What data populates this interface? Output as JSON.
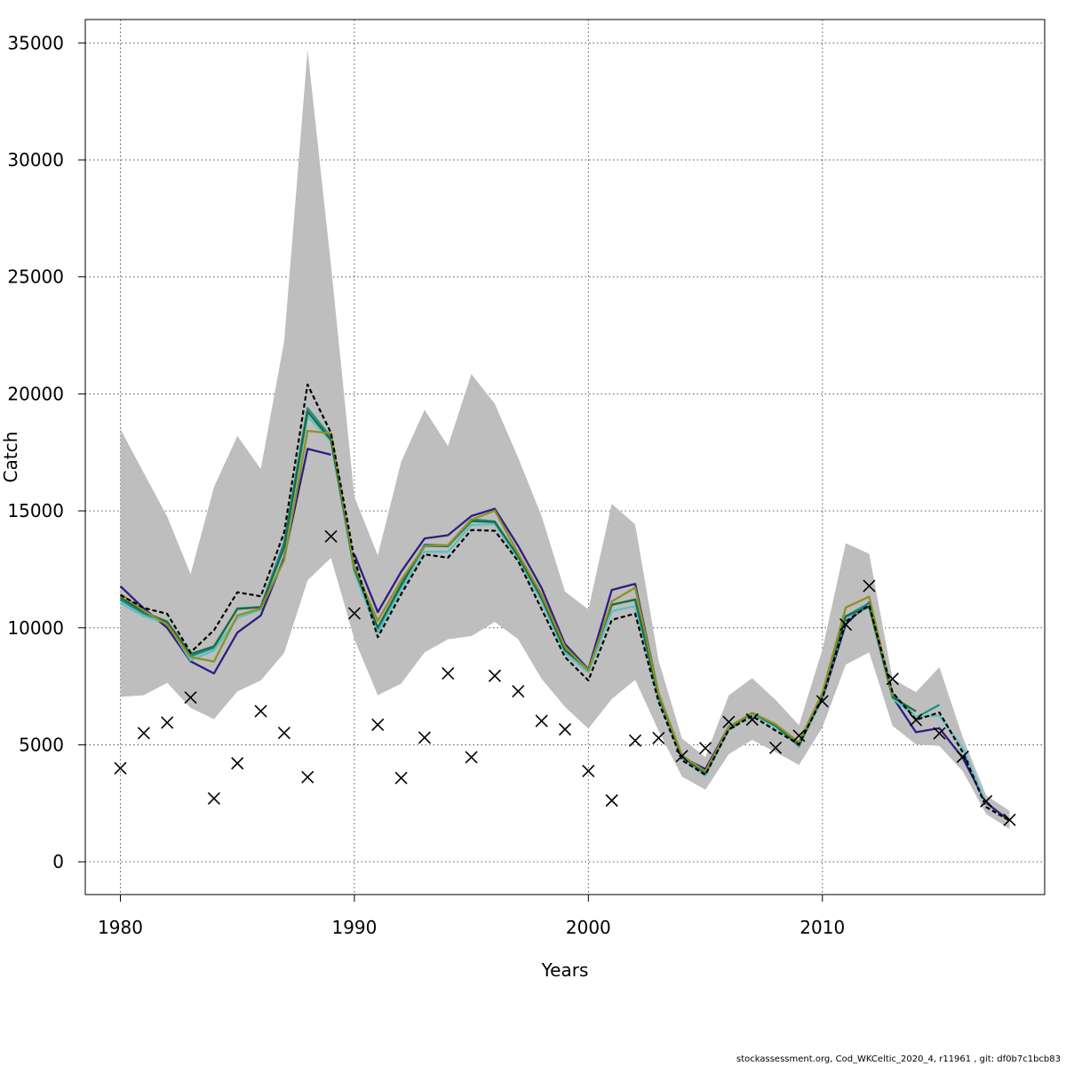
{
  "chart_data": {
    "type": "line",
    "title": "",
    "xlabel": "Years",
    "ylabel": "Catch",
    "xlim": [
      1978.5,
      2019.5
    ],
    "ylim": [
      -1400,
      36000
    ],
    "xticks": [
      1980,
      1990,
      2000,
      2010
    ],
    "yticks": [
      0,
      5000,
      10000,
      15000,
      20000,
      25000,
      30000,
      35000
    ],
    "grid": true,
    "band": {
      "x": [
        1980,
        1981,
        1982,
        1983,
        1984,
        1985,
        1986,
        1987,
        1988,
        1989,
        1990,
        1991,
        1992,
        1993,
        1994,
        1995,
        1996,
        1997,
        1998,
        1999,
        2000,
        2001,
        2002,
        2003,
        2004,
        2005,
        2006,
        2007,
        2008,
        2009,
        2010,
        2011,
        2012,
        2013,
        2014,
        2015,
        2016,
        2017,
        2018
      ],
      "lower": [
        7050,
        7120,
        7650,
        6580,
        6100,
        7280,
        7750,
        8930,
        12030,
        12990,
        9510,
        7120,
        7620,
        8950,
        9510,
        9650,
        10250,
        9510,
        7820,
        6620,
        5690,
        6960,
        7780,
        5600,
        3640,
        3080,
        4600,
        5210,
        4690,
        4140,
        5750,
        8430,
        8950,
        5810,
        5020,
        4950,
        3870,
        2040,
        1400
      ],
      "upper": [
        18500,
        16620,
        14760,
        12300,
        16020,
        18200,
        16790,
        22250,
        34700,
        25500,
        15600,
        13100,
        17100,
        19320,
        17770,
        20850,
        19580,
        17270,
        14780,
        11550,
        10790,
        15300,
        14420,
        8600,
        5270,
        4470,
        7120,
        7850,
        6920,
        5840,
        9070,
        13620,
        13160,
        7820,
        7250,
        8320,
        5320,
        2840,
        2180
      ]
    },
    "series": [
      {
        "name": "",
        "color": "#000000",
        "dashed": true,
        "x": [
          1980,
          1981,
          1982,
          1983,
          1984,
          1985,
          1986,
          1987,
          1988,
          1989,
          1990,
          1991,
          1992,
          1993,
          1994,
          1995,
          1996,
          1997,
          1998,
          1999,
          2000,
          2001,
          2002,
          2003,
          2004,
          2005,
          2006,
          2007,
          2008,
          2009,
          2010,
          2011,
          2012,
          2013,
          2014,
          2015,
          2016,
          2017,
          2018
        ],
        "values": [
          11400,
          10850,
          10600,
          8950,
          9900,
          11520,
          11350,
          14080,
          20400,
          18330,
          12950,
          9600,
          11440,
          13140,
          13000,
          14180,
          14150,
          12850,
          10800,
          8750,
          7750,
          10340,
          10610,
          6840,
          4340,
          3720,
          5650,
          6230,
          5610,
          5020,
          7000,
          10270,
          10970,
          7240,
          6070,
          6380,
          4680,
          2340,
          1760
        ]
      },
      {
        "name": "",
        "color": "#2e1e80",
        "dashed": false,
        "x": [
          1980,
          1981,
          1982,
          1983,
          1984,
          1985,
          1986,
          1987,
          1988,
          1989
        ],
        "values": [
          11780,
          10830,
          10000,
          8570,
          8050,
          9800,
          10530,
          13000,
          17650,
          17400
        ]
      },
      {
        "name": "",
        "color": "#2e1e80",
        "dashed": false,
        "x": [
          1990,
          1991,
          1992,
          1993,
          1994,
          1995,
          1996,
          1997,
          1998,
          1999,
          2000,
          2001,
          2002,
          2003,
          2004,
          2005,
          2006,
          2007,
          2008,
          2009,
          2010,
          2011,
          2012,
          2013,
          2014,
          2015,
          2016,
          2017,
          2018
        ],
        "values": [
          13150,
          10670,
          12400,
          13820,
          13960,
          14780,
          15090,
          13500,
          11700,
          9310,
          8230,
          11620,
          11880,
          7190,
          4470,
          3960,
          5770,
          6330,
          5770,
          5040,
          6960,
          10160,
          11090,
          7050,
          5540,
          5710,
          4440,
          2520,
          1760
        ]
      },
      {
        "name": "",
        "color": "#1f8f8a",
        "dashed": false,
        "x": [
          1980,
          1981,
          1982,
          1983,
          1984,
          1985,
          1986,
          1987,
          1988,
          1989,
          1990,
          1991,
          1992,
          1993,
          1994,
          1995,
          1996,
          1997,
          1998,
          1999,
          2000,
          2001,
          2002,
          2003,
          2004,
          2005,
          2006,
          2007,
          2008,
          2009,
          2010,
          2011,
          2012,
          2013,
          2014,
          2015
        ],
        "values": [
          11190,
          10610,
          10180,
          8780,
          9150,
          10830,
          10890,
          13650,
          19390,
          18150,
          12500,
          9960,
          11790,
          13560,
          13520,
          14640,
          14550,
          13050,
          11280,
          9050,
          8200,
          10980,
          11220,
          7080,
          4470,
          3740,
          5680,
          6350,
          5810,
          4930,
          7060,
          10490,
          11060,
          7190,
          6160,
          6710
        ]
      },
      {
        "name": "",
        "color": "#5bc0c7",
        "dashed": false,
        "x": [
          1980,
          1981,
          1982,
          1983,
          1984,
          1985,
          1986,
          1987,
          1988,
          1989,
          1990,
          1991,
          1992,
          1993,
          1994,
          1995,
          1996,
          1997,
          1998,
          1999,
          2000,
          2001,
          2002,
          2003,
          2004,
          2005,
          2006,
          2007,
          2008,
          2009,
          2010,
          2011,
          2012,
          2013,
          2014,
          2015,
          2016,
          2017
        ],
        "values": [
          11060,
          10500,
          10200,
          8610,
          9040,
          10420,
          10780,
          13370,
          19050,
          17980,
          12370,
          9790,
          11630,
          13250,
          13250,
          14400,
          14430,
          12930,
          11130,
          8910,
          8100,
          10710,
          10930,
          6920,
          4410,
          3680,
          5640,
          6310,
          5740,
          4960,
          6980,
          10400,
          10900,
          6980,
          6180,
          6250,
          4870,
          2490
        ]
      },
      {
        "name": "",
        "color": "#1c6e3e",
        "dashed": false,
        "x": [
          1980,
          1981,
          1982,
          1983,
          1984,
          1985,
          1986,
          1987,
          1988,
          1989,
          1990,
          1991,
          1992,
          1993,
          1994,
          1995,
          1996,
          1997,
          1998,
          1999,
          2000,
          2001,
          2002,
          2003,
          2004,
          2005,
          2006,
          2007,
          2008,
          2009,
          2010,
          2011,
          2012,
          2013,
          2014
        ],
        "values": [
          11290,
          10680,
          10260,
          8880,
          9210,
          10810,
          10880,
          13450,
          19240,
          18030,
          12520,
          10010,
          11850,
          13490,
          13490,
          14560,
          14520,
          13060,
          11270,
          9040,
          8250,
          10990,
          11200,
          7100,
          4490,
          3780,
          5700,
          6360,
          5820,
          4980,
          7080,
          10500,
          10900,
          7040,
          6430
        ]
      },
      {
        "name": "",
        "color": "#8f8f28",
        "dashed": false,
        "x": [
          1980,
          1981,
          1982,
          1983,
          1984,
          1985,
          1986,
          1987,
          1988,
          1989,
          1990,
          1991,
          1992,
          1993,
          1994,
          1995,
          1996,
          1997,
          1998,
          1999,
          2000,
          2001,
          2002,
          2003,
          2004,
          2005,
          2006,
          2007,
          2008,
          2009,
          2010,
          2011,
          2012,
          2013
        ],
        "values": [
          11450,
          10740,
          10130,
          8750,
          8560,
          10530,
          10820,
          12890,
          18420,
          18310,
          12610,
          10300,
          12040,
          13490,
          13530,
          14620,
          15010,
          13180,
          11420,
          9200,
          8170,
          11130,
          11720,
          7200,
          4550,
          3860,
          5760,
          6370,
          5880,
          5110,
          7220,
          10870,
          11330,
          7080
        ]
      }
    ],
    "points": {
      "x": [
        1980,
        1981,
        1982,
        1983,
        1984,
        1985,
        1986,
        1987,
        1988,
        1989,
        1990,
        1991,
        1992,
        1993,
        1994,
        1995,
        1996,
        1997,
        1998,
        1999,
        2000,
        2001,
        2002,
        2003,
        2004,
        2005,
        2006,
        2007,
        2008,
        2009,
        2010,
        2011,
        2012,
        2013,
        2014,
        2015,
        2016,
        2017,
        2018
      ],
      "values": [
        4000,
        5500,
        5950,
        7020,
        2710,
        4210,
        6440,
        5510,
        3620,
        13910,
        10620,
        5860,
        3580,
        5310,
        8050,
        4470,
        7950,
        7290,
        6020,
        5660,
        3880,
        2620,
        5180,
        5290,
        4520,
        4860,
        5980,
        6080,
        4870,
        5390,
        6860,
        10140,
        11790,
        7820,
        6060,
        5490,
        4490,
        2590,
        1790
      ]
    }
  },
  "footer": "stockassessment.org, Cod_WKCeltic_2020_4, r11961 , git: df0b7c1bcb83"
}
